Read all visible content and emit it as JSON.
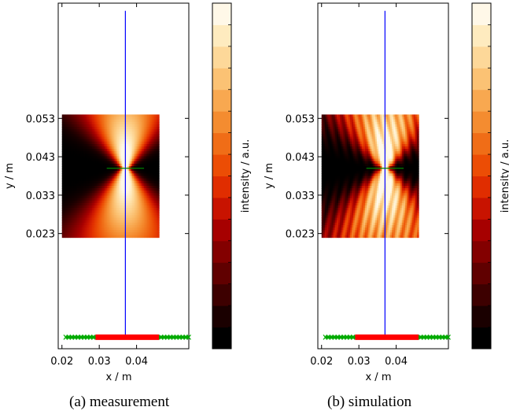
{
  "panels": [
    {
      "caption": "(a) measurement",
      "xlabel": "x / m",
      "ylabel": "y / m",
      "xticks": [
        "0.02",
        "0.03",
        "0.04"
      ],
      "yticks": [
        "0.053",
        "0.043",
        "0.033",
        "0.023"
      ],
      "colorbar_label": "intensity / a.u."
    },
    {
      "caption": "(b) simulation",
      "xlabel": "x / m",
      "ylabel": "y / m",
      "xticks": [
        "0.02",
        "0.03",
        "0.04"
      ],
      "yticks": [
        "0.053",
        "0.043",
        "0.033",
        "0.023"
      ],
      "colorbar_label": "intensity / a.u."
    }
  ],
  "chart_data": [
    {
      "type": "heatmap",
      "title": "",
      "caption": "(a) measurement",
      "xlabel": "x / m",
      "ylabel": "y / m",
      "xticks": [
        0.02,
        0.03,
        0.04
      ],
      "yticks": [
        0.053,
        0.043,
        0.033,
        0.023
      ],
      "xlim": [
        0.019,
        0.054
      ],
      "ylim": [
        -0.007,
        0.083
      ],
      "heatmap_extent": {
        "x": [
          0.02,
          0.046
        ],
        "y": [
          0.022,
          0.054
        ]
      },
      "beam_center": {
        "x": 0.037,
        "y": 0.04
      },
      "vertical_line": {
        "x": 0.037,
        "y": [
          -0.004,
          0.081
        ],
        "color": "#0000ff"
      },
      "focus_marker": {
        "x": [
          0.032,
          0.042
        ],
        "y": 0.04,
        "color": "#008000"
      },
      "array_markers": {
        "y": -0.004,
        "x": [
          0.021,
          0.054
        ],
        "active_x": [
          0.029,
          0.046
        ],
        "outer_color": "#00aa00",
        "active_color": "#ff0000"
      },
      "colorbar": {
        "label": "intensity / a.u.",
        "levels": 16
      },
      "colormap": [
        "#000000",
        "#1a0000",
        "#3d0000",
        "#600000",
        "#830000",
        "#a60000",
        "#c81300",
        "#e02d00",
        "#ec4d05",
        "#f06d17",
        "#f48c30",
        "#f8a850",
        "#fbc274",
        "#fdd899",
        "#feebbf",
        "#fff8e8"
      ]
    },
    {
      "type": "heatmap",
      "title": "",
      "caption": "(b) simulation",
      "xlabel": "x / m",
      "ylabel": "y / m",
      "xticks": [
        0.02,
        0.03,
        0.04
      ],
      "yticks": [
        0.053,
        0.043,
        0.033,
        0.023
      ],
      "xlim": [
        0.019,
        0.054
      ],
      "ylim": [
        -0.007,
        0.083
      ],
      "heatmap_extent": {
        "x": [
          0.02,
          0.046
        ],
        "y": [
          0.022,
          0.054
        ]
      },
      "beam_center": {
        "x": 0.037,
        "y": 0.04
      },
      "vertical_line": {
        "x": 0.037,
        "y": [
          -0.004,
          0.081
        ],
        "color": "#0000ff"
      },
      "focus_marker": {
        "x": [
          0.032,
          0.042
        ],
        "y": 0.04,
        "color": "#008000"
      },
      "array_markers": {
        "y": -0.004,
        "x": [
          0.021,
          0.054
        ],
        "active_x": [
          0.029,
          0.046
        ],
        "outer_color": "#00aa00",
        "active_color": "#ff0000"
      },
      "colorbar": {
        "label": "intensity / a.u.",
        "levels": 16
      },
      "colormap": [
        "#000000",
        "#1a0000",
        "#3d0000",
        "#600000",
        "#830000",
        "#a60000",
        "#c81300",
        "#e02d00",
        "#ec4d05",
        "#f06d17",
        "#f48c30",
        "#f8a850",
        "#fbc274",
        "#fdd899",
        "#feebbf",
        "#fff8e8"
      ]
    }
  ]
}
